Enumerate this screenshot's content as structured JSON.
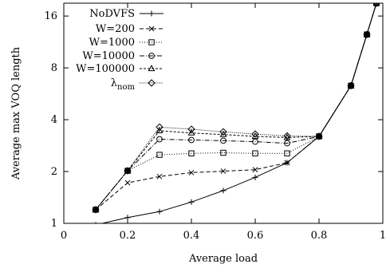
{
  "chart_data": {
    "type": "line",
    "title": "",
    "xlabel": "Average load",
    "ylabel": "Average max VOQ length",
    "xlim": [
      0,
      1
    ],
    "ylim": [
      1,
      19
    ],
    "y_scale": "log2",
    "x_ticks": [
      "0",
      "0.2",
      "0.4",
      "0.6",
      "0.8",
      "1"
    ],
    "y_ticks": [
      "1",
      "2",
      "4",
      "8",
      "16"
    ],
    "grid": false,
    "legend_position": "top-left",
    "series": [
      {
        "name": "NoDVFS",
        "marker": "plus",
        "dash": "solid",
        "x": [
          0.1,
          0.2,
          0.3,
          0.4,
          0.5,
          0.6,
          0.7,
          0.8,
          0.9,
          0.95,
          0.98
        ],
        "y": [
          0.98,
          1.08,
          1.17,
          1.33,
          1.55,
          1.85,
          2.25,
          3.2,
          6.3,
          12.5,
          19
        ]
      },
      {
        "name": "W=200",
        "marker": "cross",
        "dash": "5,3",
        "x": [
          0.1,
          0.2,
          0.3,
          0.4,
          0.5,
          0.6,
          0.7,
          0.8,
          0.9,
          0.95,
          0.98
        ],
        "y": [
          1.2,
          1.72,
          1.87,
          1.97,
          2.01,
          2.05,
          2.25,
          3.2,
          6.3,
          12.5,
          19
        ]
      },
      {
        "name": "W=1000",
        "marker": "square",
        "dash": "1,2",
        "x": [
          0.1,
          0.2,
          0.3,
          0.4,
          0.5,
          0.6,
          0.7,
          0.8,
          0.9,
          0.95,
          0.98
        ],
        "y": [
          1.2,
          2.02,
          2.5,
          2.55,
          2.57,
          2.55,
          2.55,
          3.2,
          6.3,
          12.5,
          19
        ]
      },
      {
        "name": "W=10000",
        "marker": "circle",
        "dash": "6,2,1,2",
        "x": [
          0.1,
          0.2,
          0.3,
          0.4,
          0.5,
          0.6,
          0.7,
          0.8,
          0.9,
          0.95,
          0.98
        ],
        "y": [
          1.2,
          2.02,
          3.08,
          3.05,
          3.02,
          2.98,
          2.92,
          3.2,
          6.3,
          12.5,
          19
        ]
      },
      {
        "name": "W=100000",
        "marker": "triangle",
        "dash": "3,2",
        "x": [
          0.1,
          0.2,
          0.3,
          0.4,
          0.5,
          0.6,
          0.7,
          0.8,
          0.9,
          0.95,
          0.98
        ],
        "y": [
          1.2,
          2.02,
          3.45,
          3.35,
          3.28,
          3.2,
          3.15,
          3.2,
          6.3,
          12.5,
          19
        ]
      },
      {
        "name": "λnom",
        "marker": "diamond",
        "dash": "1,1.5",
        "x": [
          0.1,
          0.2,
          0.3,
          0.4,
          0.5,
          0.6,
          0.7,
          0.8,
          0.9,
          0.95,
          0.98
        ],
        "y": [
          1.2,
          2.02,
          3.62,
          3.52,
          3.4,
          3.3,
          3.22,
          3.2,
          6.3,
          12.5,
          19
        ]
      }
    ],
    "legend_labels": {
      "nodvfs": "NoDVFS",
      "w200": "W=200",
      "w1000": "W=1000",
      "w10000": "W=10000",
      "w100000": "W=100000",
      "lambda_main": "λ",
      "lambda_sub": "nom"
    }
  }
}
